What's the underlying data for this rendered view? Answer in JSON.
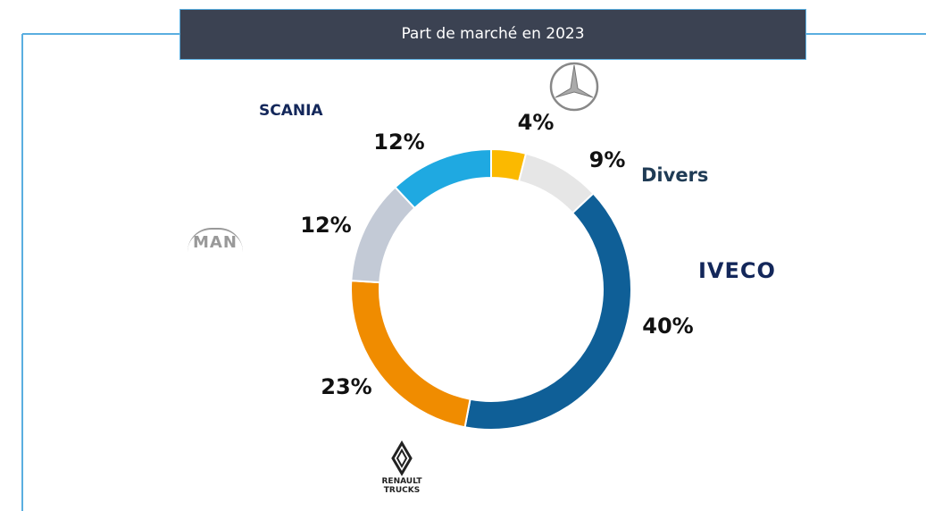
{
  "chart_data": {
    "type": "pie",
    "title": "Part de marché en 2023",
    "categories": [
      null,
      "Divers",
      "IVECO",
      "RENAULT TRUCKS",
      "MAN",
      "SCANIA"
    ],
    "values": [
      4,
      9,
      40,
      23,
      12,
      12
    ],
    "value_labels": [
      "4%",
      "9%",
      "40%",
      "23%",
      "12%",
      "12%"
    ],
    "colors": [
      "#fbb900",
      "#e6e6e6",
      "#0f5f97",
      "#f08c00",
      "#c3cad6",
      "#1fa9e1"
    ]
  }
}
